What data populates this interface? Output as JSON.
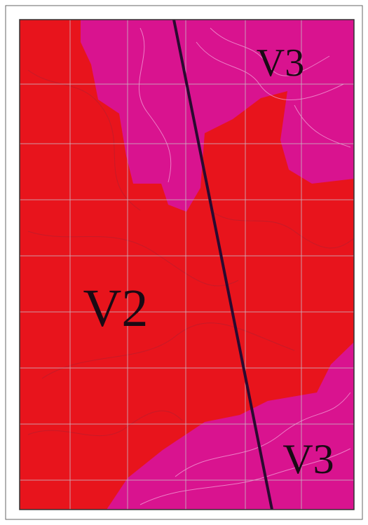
{
  "map": {
    "labels": [
      {
        "text": "V3"
      },
      {
        "text": "V2"
      },
      {
        "text": "V3"
      }
    ]
  }
}
